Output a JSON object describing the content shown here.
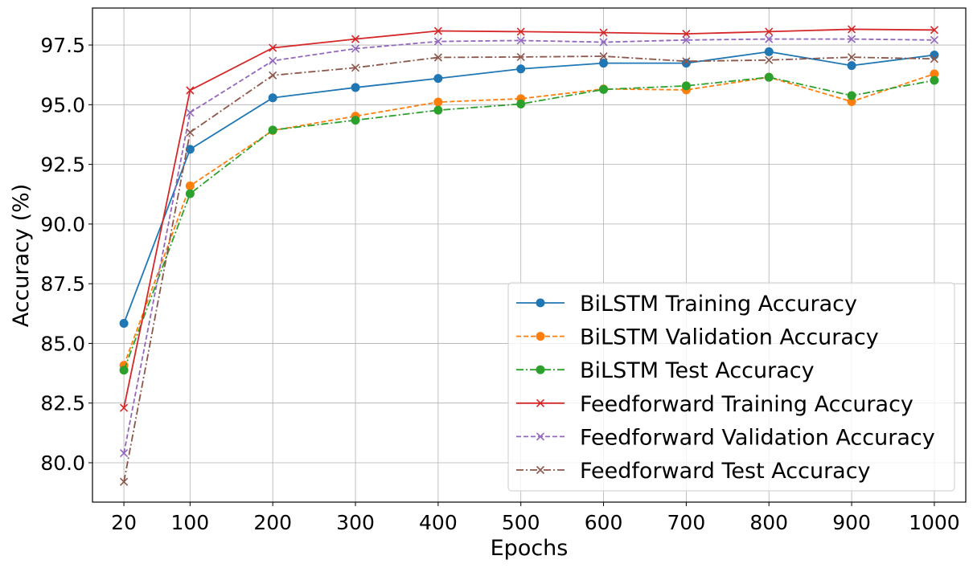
{
  "chart_data": {
    "type": "line",
    "xlabel": "Epochs",
    "ylabel": "Accuracy (%)",
    "x": [
      20,
      100,
      200,
      300,
      400,
      500,
      600,
      700,
      800,
      900,
      1000
    ],
    "x_tick_labels": [
      "20",
      "100",
      "200",
      "300",
      "400",
      "500",
      "600",
      "700",
      "800",
      "900",
      "1000"
    ],
    "y_ticks": [
      80.0,
      82.5,
      85.0,
      87.5,
      90.0,
      92.5,
      95.0,
      97.5
    ],
    "y_tick_labels": [
      "80.0",
      "82.5",
      "85.0",
      "87.5",
      "90.0",
      "92.5",
      "95.0",
      "97.5"
    ],
    "ylim": [
      78.35,
      99.05
    ],
    "grid": true,
    "legend_position": "lower-right",
    "series": [
      {
        "name": "BiLSTM Training Accuracy",
        "color": "#1f77b4",
        "linestyle": "solid",
        "marker": "circle",
        "values": [
          85.84,
          93.13,
          95.29,
          95.72,
          96.1,
          96.5,
          96.74,
          96.74,
          97.22,
          96.64,
          97.08
        ]
      },
      {
        "name": "BiLSTM Validation Accuracy",
        "color": "#ff7f0e",
        "linestyle": "dashed",
        "marker": "circle",
        "values": [
          84.08,
          91.6,
          93.92,
          94.52,
          95.11,
          95.25,
          95.66,
          95.62,
          96.15,
          95.13,
          96.29
        ]
      },
      {
        "name": "BiLSTM Test Accuracy",
        "color": "#2ca02c",
        "linestyle": "dashdot",
        "marker": "circle",
        "values": [
          83.88,
          91.27,
          93.94,
          94.35,
          94.77,
          95.03,
          95.64,
          95.79,
          96.15,
          95.38,
          96.02
        ]
      },
      {
        "name": "Feedforward Training Accuracy",
        "color": "#d62728",
        "linestyle": "solid",
        "marker": "x",
        "values": [
          82.3,
          95.6,
          97.38,
          97.75,
          98.09,
          98.06,
          98.02,
          97.97,
          98.06,
          98.16,
          98.13
        ]
      },
      {
        "name": "Feedforward Validation Accuracy",
        "color": "#9467bd",
        "linestyle": "dashed",
        "marker": "x",
        "values": [
          80.4,
          94.67,
          96.84,
          97.35,
          97.65,
          97.69,
          97.62,
          97.71,
          97.75,
          97.75,
          97.71
        ]
      },
      {
        "name": "Feedforward Test Accuracy",
        "color": "#8c564b",
        "linestyle": "dashdot",
        "marker": "x",
        "values": [
          79.2,
          93.84,
          96.23,
          96.55,
          96.98,
          97.0,
          97.03,
          96.82,
          96.87,
          96.99,
          96.92
        ]
      }
    ]
  }
}
